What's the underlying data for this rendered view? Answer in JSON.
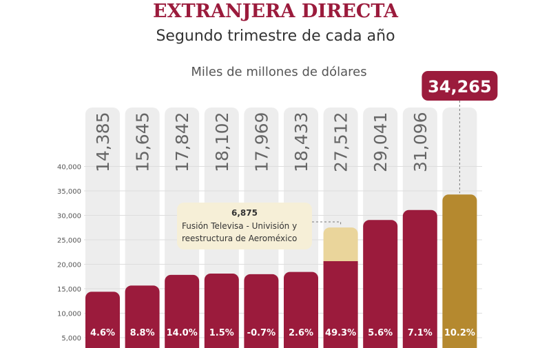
{
  "header": {
    "title": "EXTRANJERA DIRECTA",
    "subtitle": "Segundo trimestre de cada año"
  },
  "chart_data": {
    "type": "bar",
    "unit_label": "Miles de millones de dólares",
    "categories": [
      "",
      "",
      "",
      "",
      "",
      "",
      "",
      "",
      "",
      ""
    ],
    "values": [
      14385,
      15645,
      17842,
      18102,
      17969,
      18433,
      27512,
      29041,
      31096,
      34265
    ],
    "value_labels": [
      "14,385",
      "15,645",
      "17,842",
      "18,102",
      "17,969",
      "18,433",
      "27,512",
      "29,041",
      "31,096",
      "34,265"
    ],
    "growth_labels": [
      "4.6%",
      "8.8%",
      "14.0%",
      "1.5%",
      "-0.7%",
      "2.6%",
      "49.3%",
      "5.6%",
      "7.1%",
      "10.2%"
    ],
    "highlight_index": 9,
    "segment": {
      "bar_index": 6,
      "value": 6875,
      "value_label": "6,875",
      "note": [
        "Fusión Televisa - Univisión y",
        "reestructura de Aeroméxico"
      ]
    },
    "y_ticks": [
      5000,
      10000,
      15000,
      20000,
      25000,
      30000,
      35000,
      40000
    ],
    "y_tick_labels": [
      "5,000",
      "10,000",
      "15,000",
      "20,000",
      "25,000",
      "30,000",
      "35,000",
      "40,000"
    ],
    "ylim": [
      0,
      40000
    ],
    "grid": true,
    "colors": {
      "bar": "#9b1b3c",
      "highlight_bar": "#b5892f",
      "segment": "#ead59b",
      "column_bg": "#ededed",
      "grid": "#dddddd",
      "label_text": "#666666",
      "note_bg": "#f6efd7"
    }
  }
}
